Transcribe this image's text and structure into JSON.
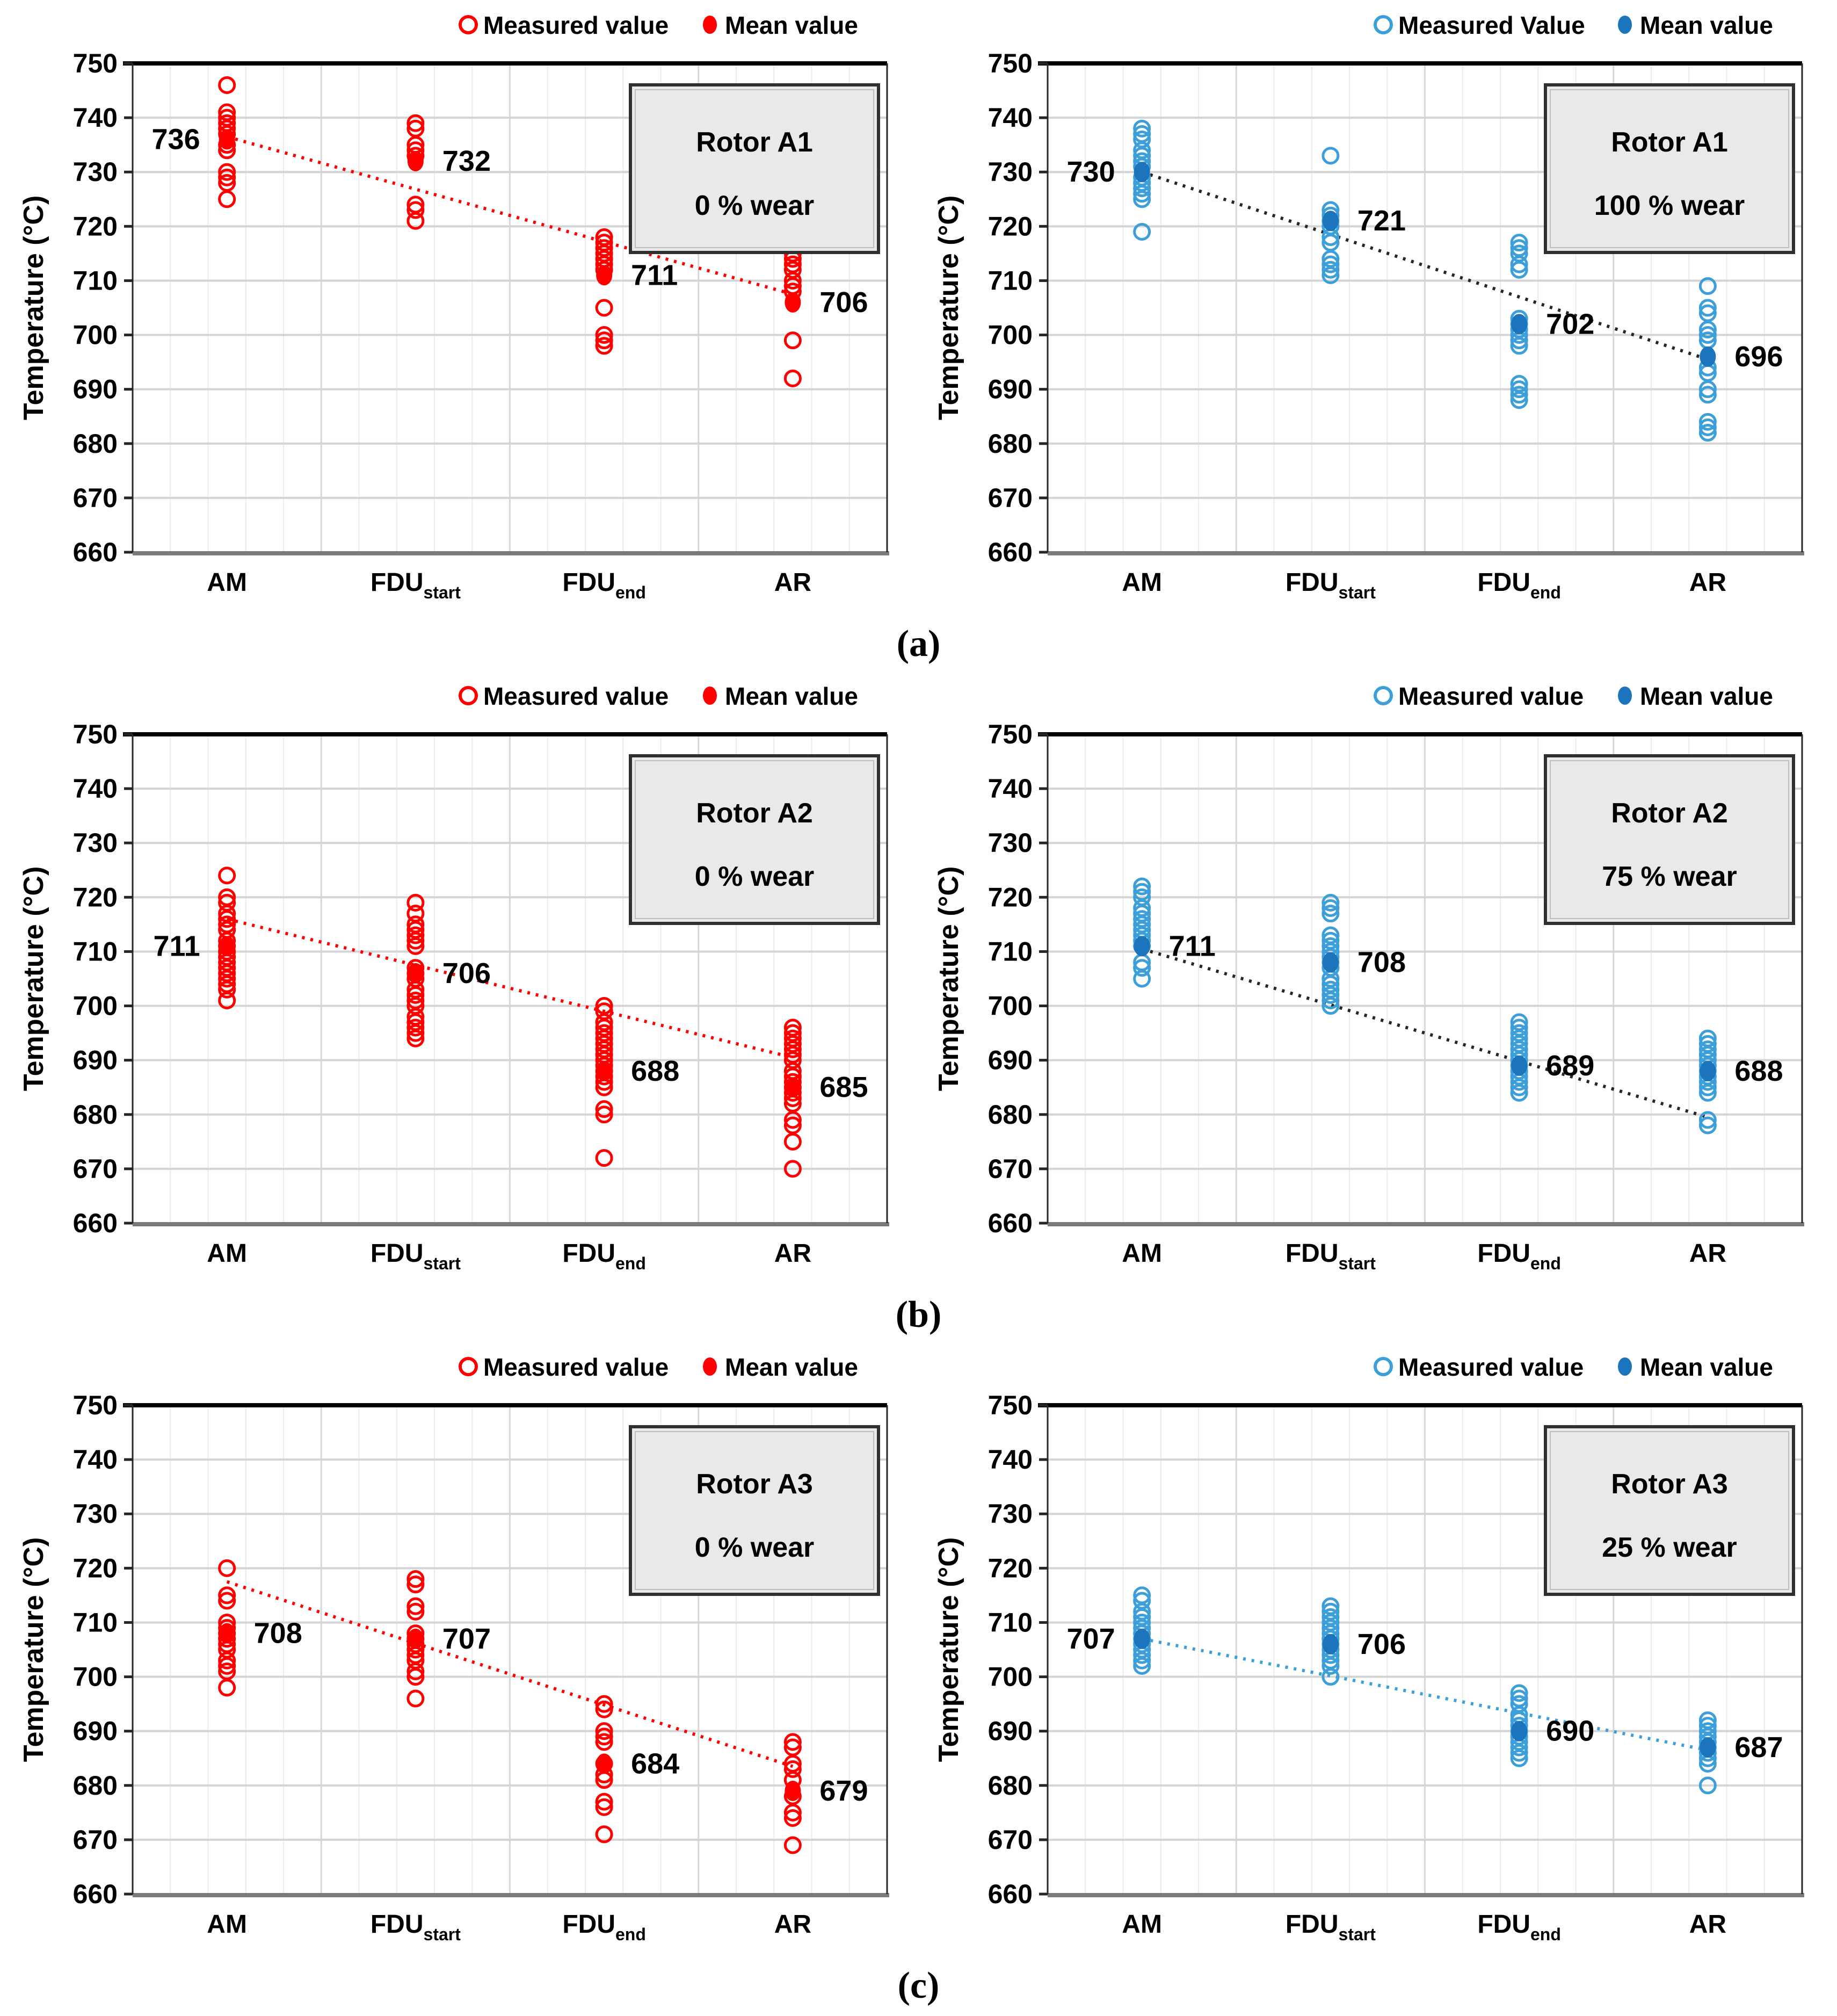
{
  "figure": {
    "captions": [
      "(a)",
      "(b)",
      "(c)"
    ]
  },
  "axis_common": {
    "ylabel": "Temperature (°C)",
    "ylim": [
      660,
      750
    ],
    "ystep": 10,
    "grid": true,
    "legend_position": "top-right",
    "categories": [
      {
        "main": "AM",
        "sub": ""
      },
      {
        "main": "FDU",
        "sub": "start"
      },
      {
        "main": "FDU",
        "sub": "end"
      },
      {
        "main": "AR",
        "sub": ""
      }
    ]
  },
  "chart_data": [
    {
      "type": "scatter",
      "title_lines": [
        "Rotor A1",
        "0 % wear"
      ],
      "legend": [
        {
          "marker": "open",
          "label": "Measured value"
        },
        {
          "marker": "filled",
          "label": "Mean value"
        }
      ],
      "palette": {
        "measured": "#FF0000",
        "mean": "#FF0000",
        "trend": "#FF0000"
      },
      "categories": [
        "AM",
        "FDU_start",
        "FDU_end",
        "AR"
      ],
      "measured_values": [
        [
          746,
          741,
          740,
          739,
          738,
          737,
          735,
          734,
          730,
          729,
          728,
          725
        ],
        [
          739,
          738,
          735,
          734,
          733,
          724,
          723,
          721
        ],
        [
          718,
          717,
          716,
          715,
          714,
          713,
          712,
          705,
          700,
          699,
          698
        ],
        [
          715,
          714,
          713,
          712,
          710,
          709,
          708,
          699,
          692
        ]
      ],
      "mean_values": [
        736,
        732,
        711,
        706
      ],
      "mean_label_side": [
        "left",
        "right",
        "right",
        "right"
      ],
      "trend_line": {
        "from": 736.5,
        "to": 707.5
      },
      "ylim": [
        660,
        750
      ]
    },
    {
      "type": "scatter",
      "title_lines": [
        "Rotor A1",
        "100 % wear"
      ],
      "legend": [
        {
          "marker": "open",
          "label": "Measured Value"
        },
        {
          "marker": "filled",
          "label": "Mean value"
        }
      ],
      "palette": {
        "measured": "#3C9FD9",
        "mean": "#1B74BC",
        "trend": "#262626"
      },
      "categories": [
        "AM",
        "FDU_start",
        "FDU_end",
        "AR"
      ],
      "measured_values": [
        [
          738,
          737,
          736,
          734,
          733,
          732,
          731,
          729,
          728,
          727,
          726,
          725,
          719
        ],
        [
          733,
          723,
          722,
          721,
          720,
          718,
          717,
          714,
          713,
          712,
          711
        ],
        [
          717,
          716,
          715,
          713,
          712,
          703,
          702,
          701,
          700,
          699,
          698,
          691,
          690,
          689,
          688
        ],
        [
          709,
          705,
          704,
          701,
          700,
          699,
          694,
          693,
          690,
          689,
          684,
          683,
          682
        ]
      ],
      "mean_values": [
        730,
        721,
        702,
        696
      ],
      "mean_label_side": [
        "left",
        "right",
        "right",
        "right"
      ],
      "trend_line": {
        "from": 730,
        "to": 695.5
      },
      "ylim": [
        660,
        750
      ]
    },
    {
      "type": "scatter",
      "title_lines": [
        "Rotor A2",
        "0 % wear"
      ],
      "legend": [
        {
          "marker": "open",
          "label": "Measured value"
        },
        {
          "marker": "filled",
          "label": "Mean value"
        }
      ],
      "palette": {
        "measured": "#FF0000",
        "mean": "#FF0000",
        "trend": "#FF0000"
      },
      "categories": [
        "AM",
        "FDU_start",
        "FDU_end",
        "AR"
      ],
      "measured_values": [
        [
          724,
          720,
          719,
          717,
          716,
          715,
          714,
          712,
          711,
          710,
          709,
          708,
          707,
          706,
          705,
          704,
          703,
          701
        ],
        [
          719,
          717,
          715,
          714,
          713,
          712,
          711,
          707,
          706,
          705,
          703,
          702,
          701,
          700,
          698,
          697,
          696,
          695,
          694
        ],
        [
          700,
          699,
          697,
          696,
          695,
          694,
          693,
          692,
          691,
          690,
          689,
          688,
          687,
          686,
          685,
          681,
          680,
          672
        ],
        [
          696,
          695,
          694,
          693,
          692,
          691,
          690,
          688,
          687,
          686,
          685,
          684,
          683,
          682,
          679,
          678,
          675,
          670
        ]
      ],
      "mean_values": [
        711,
        706,
        688,
        685
      ],
      "mean_label_side": [
        "left",
        "right",
        "right",
        "right"
      ],
      "trend_line": {
        "from": 716,
        "to": 690.5
      },
      "ylim": [
        660,
        750
      ]
    },
    {
      "type": "scatter",
      "title_lines": [
        "Rotor A2",
        "75 % wear"
      ],
      "legend": [
        {
          "marker": "open",
          "label": "Measured value"
        },
        {
          "marker": "filled",
          "label": "Mean value"
        }
      ],
      "palette": {
        "measured": "#3C9FD9",
        "mean": "#1B74BC",
        "trend": "#262626"
      },
      "categories": [
        "AM",
        "FDU_start",
        "FDU_end",
        "AR"
      ],
      "measured_values": [
        [
          722,
          721,
          720,
          718,
          717,
          716,
          715,
          714,
          713,
          712,
          711,
          708,
          707,
          705
        ],
        [
          719,
          718,
          717,
          713,
          712,
          711,
          710,
          709,
          708,
          707,
          705,
          704,
          703,
          702,
          701,
          700
        ],
        [
          697,
          696,
          695,
          694,
          693,
          692,
          691,
          690,
          689,
          688,
          687,
          686,
          685,
          684
        ],
        [
          694,
          693,
          692,
          691,
          690,
          689,
          688,
          687,
          686,
          685,
          684,
          679,
          678
        ]
      ],
      "mean_values": [
        711,
        708,
        689,
        688
      ],
      "mean_label_side": [
        "right",
        "right",
        "right",
        "right"
      ],
      "trend_line": {
        "from": 710.5,
        "to": 679.5
      },
      "ylim": [
        660,
        750
      ]
    },
    {
      "type": "scatter",
      "title_lines": [
        "Rotor A3",
        "0 % wear"
      ],
      "legend": [
        {
          "marker": "open",
          "label": "Measured value"
        },
        {
          "marker": "filled",
          "label": "Mean value"
        }
      ],
      "palette": {
        "measured": "#FF0000",
        "mean": "#FF0000",
        "trend": "#FF0000"
      },
      "categories": [
        "AM",
        "FDU_start",
        "FDU_end",
        "AR"
      ],
      "measured_values": [
        [
          720,
          715,
          714,
          710,
          709,
          708,
          707,
          706,
          705,
          703,
          702,
          701,
          698
        ],
        [
          718,
          717,
          713,
          712,
          708,
          707,
          706,
          705,
          704,
          703,
          701,
          700,
          696
        ],
        [
          695,
          694,
          690,
          689,
          688,
          684,
          682,
          681,
          677,
          676,
          671
        ],
        [
          688,
          687,
          684,
          683,
          681,
          678,
          675,
          674,
          669
        ]
      ],
      "mean_values": [
        708,
        707,
        684,
        679
      ],
      "mean_label_side": [
        "right",
        "right",
        "right",
        "right"
      ],
      "trend_line": {
        "from": 717.5,
        "to": 683.5
      },
      "ylim": [
        660,
        750
      ]
    },
    {
      "type": "scatter",
      "title_lines": [
        "Rotor A3",
        "25 % wear"
      ],
      "legend": [
        {
          "marker": "open",
          "label": "Measured value"
        },
        {
          "marker": "filled",
          "label": "Mean value"
        }
      ],
      "palette": {
        "measured": "#3C9FD9",
        "mean": "#1B74BC",
        "trend": "#3C9FD9"
      },
      "categories": [
        "AM",
        "FDU_start",
        "FDU_end",
        "AR"
      ],
      "measured_values": [
        [
          715,
          714,
          712,
          711,
          710,
          709,
          708,
          707,
          706,
          705,
          704,
          703,
          702
        ],
        [
          713,
          712,
          711,
          710,
          709,
          708,
          707,
          706,
          705,
          704,
          703,
          702,
          700
        ],
        [
          697,
          696,
          695,
          693,
          692,
          691,
          690,
          689,
          688,
          687,
          686,
          685
        ],
        [
          692,
          691,
          690,
          689,
          688,
          687,
          686,
          685,
          684,
          680
        ]
      ],
      "mean_values": [
        707,
        706,
        690,
        687
      ],
      "mean_label_side": [
        "left",
        "right",
        "right",
        "right"
      ],
      "trend_line": {
        "from": 707,
        "to": 686.5
      },
      "ylim": [
        660,
        750
      ]
    }
  ]
}
